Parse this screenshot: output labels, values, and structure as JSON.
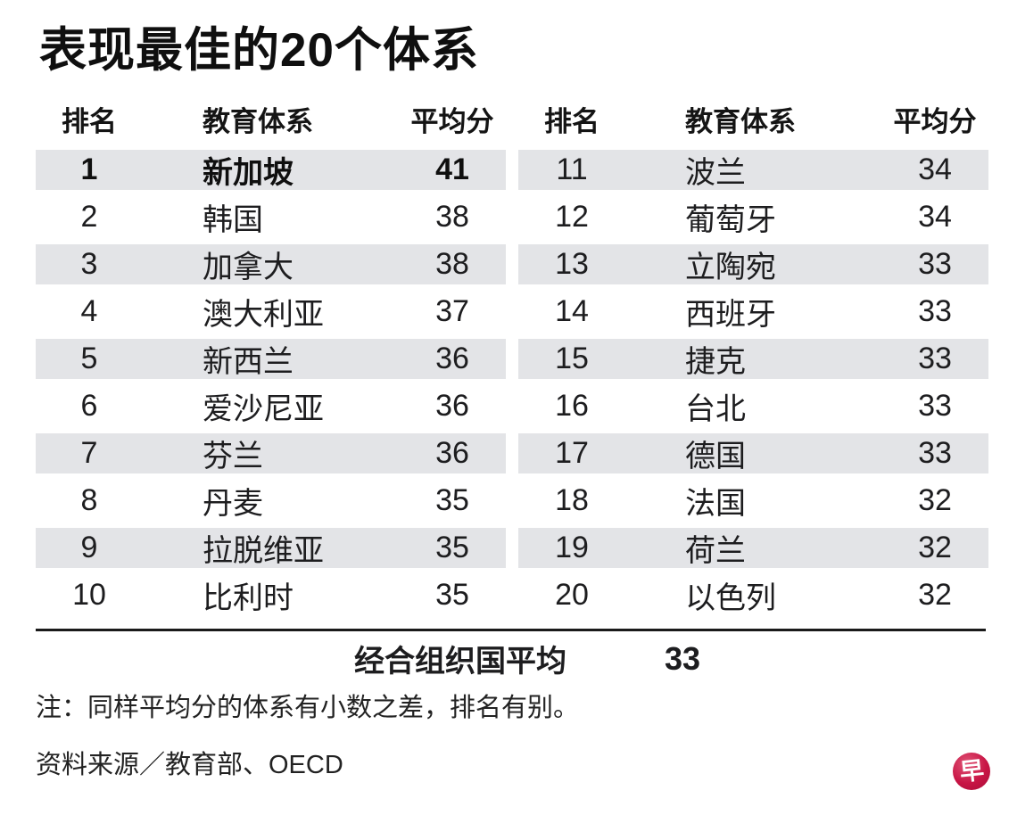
{
  "title": "表现最佳的20个体系",
  "columns": {
    "rank": "排名",
    "system": "教育体系",
    "score": "平均分"
  },
  "left_rows": [
    {
      "rank": "1",
      "system": "新加坡",
      "score": "41"
    },
    {
      "rank": "2",
      "system": "韩国",
      "score": "38"
    },
    {
      "rank": "3",
      "system": "加拿大",
      "score": "38"
    },
    {
      "rank": "4",
      "system": "澳大利亚",
      "score": "37"
    },
    {
      "rank": "5",
      "system": "新西兰",
      "score": "36"
    },
    {
      "rank": "6",
      "system": "爱沙尼亚",
      "score": "36"
    },
    {
      "rank": "7",
      "system": "芬兰",
      "score": "36"
    },
    {
      "rank": "8",
      "system": "丹麦",
      "score": "35"
    },
    {
      "rank": "9",
      "system": "拉脱维亚",
      "score": "35"
    },
    {
      "rank": "10",
      "system": "比利时",
      "score": "35"
    }
  ],
  "right_rows": [
    {
      "rank": "11",
      "system": "波兰",
      "score": "34"
    },
    {
      "rank": "12",
      "system": "葡萄牙",
      "score": "34"
    },
    {
      "rank": "13",
      "system": "立陶宛",
      "score": "33"
    },
    {
      "rank": "14",
      "system": "西班牙",
      "score": "33"
    },
    {
      "rank": "15",
      "system": "捷克",
      "score": "33"
    },
    {
      "rank": "16",
      "system": "台北",
      "score": "33"
    },
    {
      "rank": "17",
      "system": "德国",
      "score": "33"
    },
    {
      "rank": "18",
      "system": "法国",
      "score": "32"
    },
    {
      "rank": "19",
      "system": "荷兰",
      "score": "32"
    },
    {
      "rank": "20",
      "system": "以色列",
      "score": "32"
    }
  ],
  "summary": {
    "label": "经合组织国平均",
    "value": "33"
  },
  "note": "注：同样平均分的体系有小数之差，排名有别。",
  "source": "资料来源／教育部、OECD",
  "logo": {
    "glyph": "早",
    "color": "#c81545"
  },
  "colors": {
    "band": "#e3e4e7",
    "text": "#1d1d1f",
    "accent_red": "#c81545"
  },
  "chart_data": {
    "type": "table",
    "title": "表现最佳的20个体系",
    "columns": [
      "排名",
      "教育体系",
      "平均分"
    ],
    "rows": [
      [
        1,
        "新加坡",
        41
      ],
      [
        2,
        "韩国",
        38
      ],
      [
        3,
        "加拿大",
        38
      ],
      [
        4,
        "澳大利亚",
        37
      ],
      [
        5,
        "新西兰",
        36
      ],
      [
        6,
        "爱沙尼亚",
        36
      ],
      [
        7,
        "芬兰",
        36
      ],
      [
        8,
        "丹麦",
        35
      ],
      [
        9,
        "拉脱维亚",
        35
      ],
      [
        10,
        "比利时",
        35
      ],
      [
        11,
        "波兰",
        34
      ],
      [
        12,
        "葡萄牙",
        34
      ],
      [
        13,
        "立陶宛",
        33
      ],
      [
        14,
        "西班牙",
        33
      ],
      [
        15,
        "捷克",
        33
      ],
      [
        16,
        "台北",
        33
      ],
      [
        17,
        "德国",
        33
      ],
      [
        18,
        "法国",
        32
      ],
      [
        19,
        "荷兰",
        32
      ],
      [
        20,
        "以色列",
        32
      ]
    ],
    "summary_row": [
      "经合组织国平均",
      33
    ],
    "highlight_row": 1,
    "note": "注：同样平均分的体系有小数之差，排名有别。",
    "source": "资料来源／教育部、OECD",
    "layout": "two side-by-side tables: ranks 1-10 left, 11-20 right; odd ranks shaded"
  }
}
